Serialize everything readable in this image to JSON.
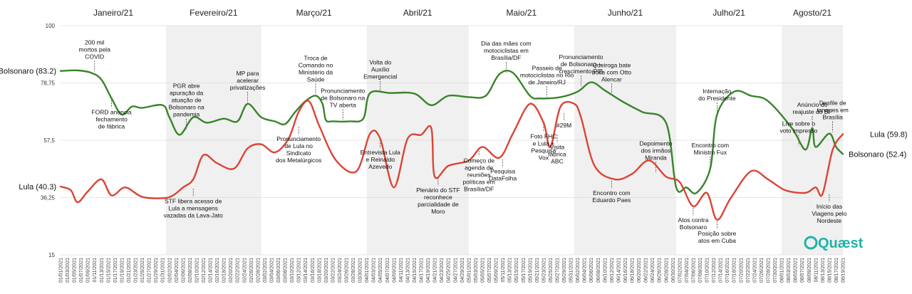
{
  "chart_data": {
    "type": "line",
    "y_ticks": [
      15,
      36.25,
      57.5,
      78.75,
      100
    ],
    "y_tick_labels": [
      "15",
      "36,25",
      "57,5",
      "78,75",
      "100"
    ],
    "ylim": [
      15,
      100
    ],
    "months": [
      "Janeiro/21",
      "Fevereiro/21",
      "Março/21",
      "Abril/21",
      "Maio/21",
      "Junho/21",
      "Julho/21",
      "Agosto/21"
    ],
    "x_start": "01/01/2021",
    "x_end": "08/19/2021",
    "series": [
      {
        "name": "Bolsonaro",
        "color": "#2e7d1f",
        "start_label": "Bolsonaro (83.2)",
        "end_label": "Bolsonaro (52.4)",
        "points": [
          [
            "01/01/2021",
            83.2
          ],
          [
            "01/06/2021",
            83.4
          ],
          [
            "01/10/2021",
            82.5
          ],
          [
            "01/13/2021",
            80.0
          ],
          [
            "01/16/2021",
            73.0
          ],
          [
            "01/19/2021",
            67.0
          ],
          [
            "01/22/2021",
            70.0
          ],
          [
            "01/25/2021",
            69.5
          ],
          [
            "01/31/2021",
            70.5
          ],
          [
            "02/02/2021",
            66.0
          ],
          [
            "02/05/2021",
            59.5
          ],
          [
            "02/09/2021",
            66.0
          ],
          [
            "02/13/2021",
            64.0
          ],
          [
            "02/18/2021",
            65.5
          ],
          [
            "02/22/2021",
            64.5
          ],
          [
            "02/25/2021",
            71.0
          ],
          [
            "03/01/2021",
            66.0
          ],
          [
            "03/05/2021",
            64.5
          ],
          [
            "03/08/2021",
            63.5
          ],
          [
            "03/11/2021",
            68.0
          ],
          [
            "03/14/2021",
            72.0
          ],
          [
            "03/17/2021",
            74.0
          ],
          [
            "03/19/2021",
            71.0
          ],
          [
            "03/20/2021",
            65.0
          ],
          [
            "03/22/2021",
            64.5
          ],
          [
            "03/27/2021",
            64.5
          ],
          [
            "03/31/2021",
            65.5
          ],
          [
            "04/02/2021",
            75.0
          ],
          [
            "04/08/2021",
            75.0
          ],
          [
            "04/15/2021",
            74.8
          ],
          [
            "04/20/2021",
            70.5
          ],
          [
            "04/25/2021",
            74.0
          ],
          [
            "05/01/2021",
            73.5
          ],
          [
            "05/06/2021",
            74.0
          ],
          [
            "05/10/2021",
            82.0
          ],
          [
            "05/14/2021",
            82.5
          ],
          [
            "05/19/2021",
            74.0
          ],
          [
            "05/22/2021",
            73.0
          ],
          [
            "05/28/2021",
            73.5
          ],
          [
            "06/02/2021",
            75.5
          ],
          [
            "06/06/2021",
            79.0
          ],
          [
            "06/10/2021",
            76.0
          ],
          [
            "06/15/2021",
            72.0
          ],
          [
            "06/21/2021",
            68.0
          ],
          [
            "06/28/2021",
            64.0
          ],
          [
            "07/01/2021",
            40.0
          ],
          [
            "07/04/2021",
            40.0
          ],
          [
            "07/07/2021",
            38.0
          ],
          [
            "07/11/2021",
            47.0
          ],
          [
            "07/13/2021",
            67.0
          ],
          [
            "07/18/2021",
            75.5
          ],
          [
            "07/23/2021",
            74.0
          ],
          [
            "07/28/2021",
            72.0
          ],
          [
            "08/04/2021",
            62.0
          ],
          [
            "08/08/2021",
            54.0
          ],
          [
            "08/10/2021",
            62.0
          ],
          [
            "08/11/2021",
            55.0
          ],
          [
            "08/15/2021",
            60.0
          ],
          [
            "08/17/2021",
            55.0
          ],
          [
            "08/19/2021",
            52.4
          ]
        ]
      },
      {
        "name": "Lula",
        "color": "#d93a2b",
        "start_label": "Lula (40.3)",
        "end_label": "Lula (59.8)",
        "points": [
          [
            "01/01/2021",
            40.3
          ],
          [
            "01/04/2021",
            39.0
          ],
          [
            "01/06/2021",
            34.5
          ],
          [
            "01/09/2021",
            38.5
          ],
          [
            "01/13/2021",
            43.0
          ],
          [
            "01/16/2021",
            37.0
          ],
          [
            "01/20/2021",
            40.0
          ],
          [
            "01/25/2021",
            36.5
          ],
          [
            "01/31/2021",
            36.0
          ],
          [
            "02/03/2021",
            37.0
          ],
          [
            "02/06/2021",
            40.0
          ],
          [
            "02/09/2021",
            43.0
          ],
          [
            "02/12/2021",
            52.0
          ],
          [
            "02/16/2021",
            49.0
          ],
          [
            "02/21/2021",
            47.0
          ],
          [
            "02/25/2021",
            54.5
          ],
          [
            "03/01/2021",
            56.0
          ],
          [
            "03/05/2021",
            53.0
          ],
          [
            "03/09/2021",
            58.0
          ],
          [
            "03/12/2021",
            68.0
          ],
          [
            "03/15/2021",
            72.0
          ],
          [
            "03/18/2021",
            63.0
          ],
          [
            "03/23/2021",
            50.0
          ],
          [
            "03/29/2021",
            46.0
          ],
          [
            "04/02/2021",
            60.0
          ],
          [
            "04/05/2021",
            58.0
          ],
          [
            "04/09/2021",
            40.0
          ],
          [
            "04/13/2021",
            58.0
          ],
          [
            "04/17/2021",
            59.5
          ],
          [
            "04/20/2021",
            62.0
          ],
          [
            "04/21/2021",
            44.0
          ],
          [
            "04/25/2021",
            48.0
          ],
          [
            "05/01/2021",
            50.0
          ],
          [
            "05/05/2021",
            55.0
          ],
          [
            "05/10/2021",
            51.0
          ],
          [
            "05/14/2021",
            60.0
          ],
          [
            "05/19/2021",
            71.0
          ],
          [
            "05/23/2021",
            64.0
          ],
          [
            "05/25/2021",
            55.0
          ],
          [
            "05/28/2021",
            70.0
          ],
          [
            "06/01/2021",
            71.0
          ],
          [
            "06/03/2021",
            66.0
          ],
          [
            "06/07/2021",
            48.0
          ],
          [
            "06/13/2021",
            43.0
          ],
          [
            "06/18/2021",
            45.0
          ],
          [
            "06/23/2021",
            50.0
          ],
          [
            "06/28/2021",
            44.0
          ],
          [
            "07/02/2021",
            42.0
          ],
          [
            "07/06/2021",
            33.0
          ],
          [
            "07/10/2021",
            38.0
          ],
          [
            "07/13/2021",
            28.0
          ],
          [
            "07/17/2021",
            36.0
          ],
          [
            "07/23/2021",
            46.0
          ],
          [
            "07/28/2021",
            43.0
          ],
          [
            "08/02/2021",
            39.0
          ],
          [
            "08/08/2021",
            38.0
          ],
          [
            "08/11/2021",
            40.0
          ],
          [
            "08/13/2021",
            37.5
          ],
          [
            "08/16/2021",
            54.0
          ],
          [
            "08/19/2021",
            59.8
          ]
        ]
      }
    ],
    "annotations": [
      {
        "date": "01/11/2021",
        "y": 82.5,
        "lines": [
          "200 mil",
          "mortos pela",
          "COVID"
        ],
        "pos": "above"
      },
      {
        "date": "01/16/2021",
        "y": 73.0,
        "lines": [
          "FORD anuncia",
          "fechamento",
          "de fábrica"
        ],
        "pos": "below"
      },
      {
        "date": "02/07/2021",
        "y": 61.0,
        "lines": [
          "PGR abre",
          "apuração da",
          "atuação de",
          "Bolsonaro na",
          "pandemia"
        ],
        "pos": "above"
      },
      {
        "date": "02/09/2021",
        "y": 40.0,
        "lines": [
          "STF libera acesso de",
          "Lula a mensagens",
          "vazadas da Lava-Jato"
        ],
        "pos": "below"
      },
      {
        "date": "02/25/2021",
        "y": 71.0,
        "lines": [
          "MP para",
          "acelerar",
          "privatizações"
        ],
        "pos": "above"
      },
      {
        "date": "03/12/2021",
        "y": 63.0,
        "lines": [
          "Pronunciamento",
          "de Lula no",
          "Sindicato",
          "dos Metalúrgicos"
        ],
        "pos": "below"
      },
      {
        "date": "03/17/2021",
        "y": 74.0,
        "lines": [
          "Troca de",
          "Comando no",
          "Ministério da",
          "Saúde"
        ],
        "pos": "above"
      },
      {
        "date": "03/25/2021",
        "y": 64.5,
        "lines": [
          "Pronunciamento",
          "de Bolsonaro na",
          "TV aberta"
        ],
        "pos": "above"
      },
      {
        "date": "04/05/2021",
        "y": 75.0,
        "lines": [
          "Volta do",
          "Auxílio",
          "Emergencial"
        ],
        "pos": "above"
      },
      {
        "date": "04/05/2021",
        "y": 58.0,
        "lines": [
          "Entrevista Lula",
          "e Reinaldo",
          "Azevedo"
        ],
        "pos": "below"
      },
      {
        "date": "04/22/2021",
        "y": 44.0,
        "lines": [
          "Plenário do STF",
          "reconhece",
          "parcialidade de",
          "Moro"
        ],
        "pos": "below"
      },
      {
        "date": "05/04/2021",
        "y": 55.0,
        "lines": [
          "Começo de",
          "agenda de",
          "reuniões",
          "políticas em",
          "Brasília/DF"
        ],
        "pos": "below"
      },
      {
        "date": "05/11/2021",
        "y": 51.0,
        "lines": [
          "Pesquisa",
          "DataFolha"
        ],
        "pos": "below"
      },
      {
        "date": "05/12/2021",
        "y": 82.0,
        "lines": [
          "Dia das mães com",
          "motociclistas em",
          "Brasília/DF"
        ],
        "pos": "above"
      },
      {
        "date": "05/23/2021",
        "y": 64.0,
        "lines": [
          "Foto FHC",
          "e Lula +",
          "Pesquisa",
          "Vox"
        ],
        "pos": "below"
      },
      {
        "date": "05/24/2021",
        "y": 73.0,
        "lines": [
          "Passeio de",
          "motociclistas no Rio",
          "de Janeiro/RJ"
        ],
        "pos": "above"
      },
      {
        "date": "05/27/2021",
        "y": 60.0,
        "lines": [
          "Visita",
          "fábrica",
          "ABC"
        ],
        "pos": "below"
      },
      {
        "date": "05/29/2021",
        "y": 68.0,
        "lines": [
          "#29M"
        ],
        "pos": "below"
      },
      {
        "date": "06/03/2021",
        "y": 77.0,
        "lines": [
          "Pronunciamento",
          "de Bolsonaro +",
          "crescimento PIB"
        ],
        "pos": "above"
      },
      {
        "date": "06/12/2021",
        "y": 74.0,
        "lines": [
          "Queiroga bate",
          "boca com Otto",
          "Alencar"
        ],
        "pos": "above"
      },
      {
        "date": "06/12/2021",
        "y": 43.0,
        "lines": [
          "Encontro com",
          "Eduardo Paes"
        ],
        "pos": "below"
      },
      {
        "date": "06/25/2021",
        "y": 45.0,
        "lines": [
          "Depoimento",
          "dos irmãos",
          "Miranda"
        ],
        "pos": "above"
      },
      {
        "date": "07/06/2021",
        "y": 33.0,
        "lines": [
          "Atos contra",
          "Bolsonaro"
        ],
        "pos": "below"
      },
      {
        "date": "07/11/2021",
        "y": 47.0,
        "lines": [
          "Encontro com",
          "Ministro Fux"
        ],
        "pos": "above"
      },
      {
        "date": "07/13/2021",
        "y": 67.0,
        "lines": [
          "Internação",
          "do Presidente"
        ],
        "pos": "above"
      },
      {
        "date": "07/13/2021",
        "y": 28.0,
        "lines": [
          "Posição sobre",
          "atos em Cuba"
        ],
        "pos": "below"
      },
      {
        "date": "08/06/2021",
        "y": 55.0,
        "lines": [
          "Live sobre o",
          "voto impresso"
        ],
        "pos": "above"
      },
      {
        "date": "08/10/2021",
        "y": 62.0,
        "lines": [
          "Anúncio do",
          "reajuste do BF"
        ],
        "pos": "above"
      },
      {
        "date": "08/15/2021",
        "y": 38.0,
        "lines": [
          "Início das",
          "Viagens pelo",
          "Nordeste"
        ],
        "pos": "below"
      },
      {
        "date": "08/16/2021",
        "y": 60.0,
        "lines": [
          "Desfile de",
          "tanques em",
          "Brasília"
        ],
        "pos": "above"
      }
    ],
    "logo_text": "Quæst"
  }
}
